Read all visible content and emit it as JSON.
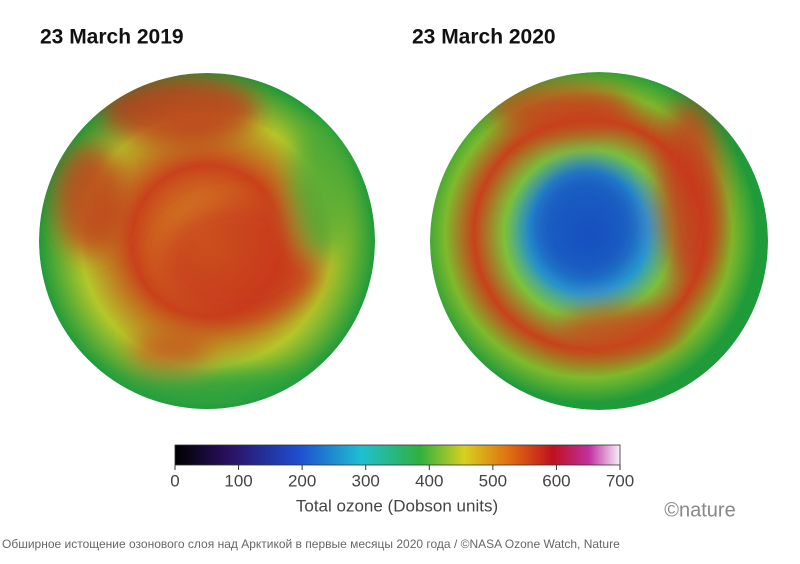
{
  "panels": [
    {
      "title": "23 March 2019"
    },
    {
      "title": "23 March 2020"
    }
  ],
  "colorbar": {
    "lim": [
      0,
      700
    ],
    "ticks": [
      0,
      100,
      200,
      300,
      400,
      500,
      600,
      700
    ],
    "label": "Total ozone (Dobson units)"
  },
  "logo": "©nature",
  "caption": "Обширное истощение озонового слоя над Арктикой в первые месяцы 2020 года / ©NASA Ozone Watch, Nature"
}
